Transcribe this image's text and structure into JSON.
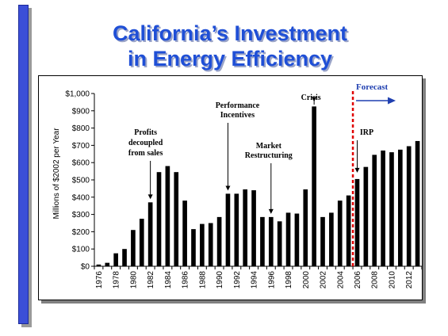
{
  "slide": {
    "title_line1": "California’s Investment",
    "title_line2": "in Energy Efficiency",
    "accent_color": "#1f4fd6",
    "sidebar_color": "#3b4fd8"
  },
  "chart_data": {
    "type": "bar",
    "title": "",
    "xlabel": "",
    "ylabel": "Millions of $2002 per Year",
    "ylim": [
      0,
      1000
    ],
    "yticks": [
      0,
      100,
      200,
      300,
      400,
      500,
      600,
      700,
      800,
      900,
      1000
    ],
    "ytick_labels": [
      "$0",
      "$100",
      "$200",
      "$300",
      "$400",
      "$500",
      "$600",
      "$700",
      "$800",
      "$900",
      "$1,000"
    ],
    "xtick_labels": [
      "1976",
      "1978",
      "1980",
      "1982",
      "1984",
      "1986",
      "1988",
      "1990",
      "1992",
      "1994",
      "1996",
      "1998",
      "2000",
      "2002",
      "2004",
      "2006",
      "2008",
      "2010",
      "2012"
    ],
    "grid": false,
    "bar_color": "#000000",
    "categories": [
      "1976",
      "1977",
      "1978",
      "1979",
      "1980",
      "1981",
      "1982",
      "1983",
      "1984",
      "1985",
      "1986",
      "1987",
      "1988",
      "1989",
      "1990",
      "1991",
      "1992",
      "1993",
      "1994",
      "1995",
      "1996",
      "1997",
      "1998",
      "1999",
      "2000",
      "2001",
      "2002",
      "2003",
      "2004",
      "2005",
      "2006",
      "2007",
      "2008",
      "2009",
      "2010",
      "2011",
      "2012",
      "2013"
    ],
    "values": [
      10,
      20,
      75,
      100,
      210,
      275,
      370,
      545,
      580,
      545,
      380,
      215,
      245,
      250,
      285,
      420,
      420,
      445,
      440,
      285,
      285,
      260,
      310,
      305,
      445,
      925,
      285,
      310,
      380,
      410,
      505,
      575,
      645,
      670,
      660,
      675,
      695,
      725
    ],
    "annotations": [
      {
        "id": "profits",
        "lines": [
          "Profits",
          "decoupled",
          "from sales"
        ],
        "year": "1982"
      },
      {
        "id": "performance",
        "lines": [
          "Performance",
          "Incentives"
        ],
        "year": "1991"
      },
      {
        "id": "market",
        "lines": [
          "Market",
          "Restructuring"
        ],
        "year": "1996"
      },
      {
        "id": "crisis",
        "lines": [
          "Crisis"
        ],
        "year": "2001"
      },
      {
        "id": "irp",
        "lines": [
          "IRP"
        ],
        "year": "2006"
      }
    ],
    "forecast": {
      "label": "Forecast",
      "start_year": "2005",
      "color": "#e00000",
      "arrow_color": "#1f3fb0"
    }
  }
}
